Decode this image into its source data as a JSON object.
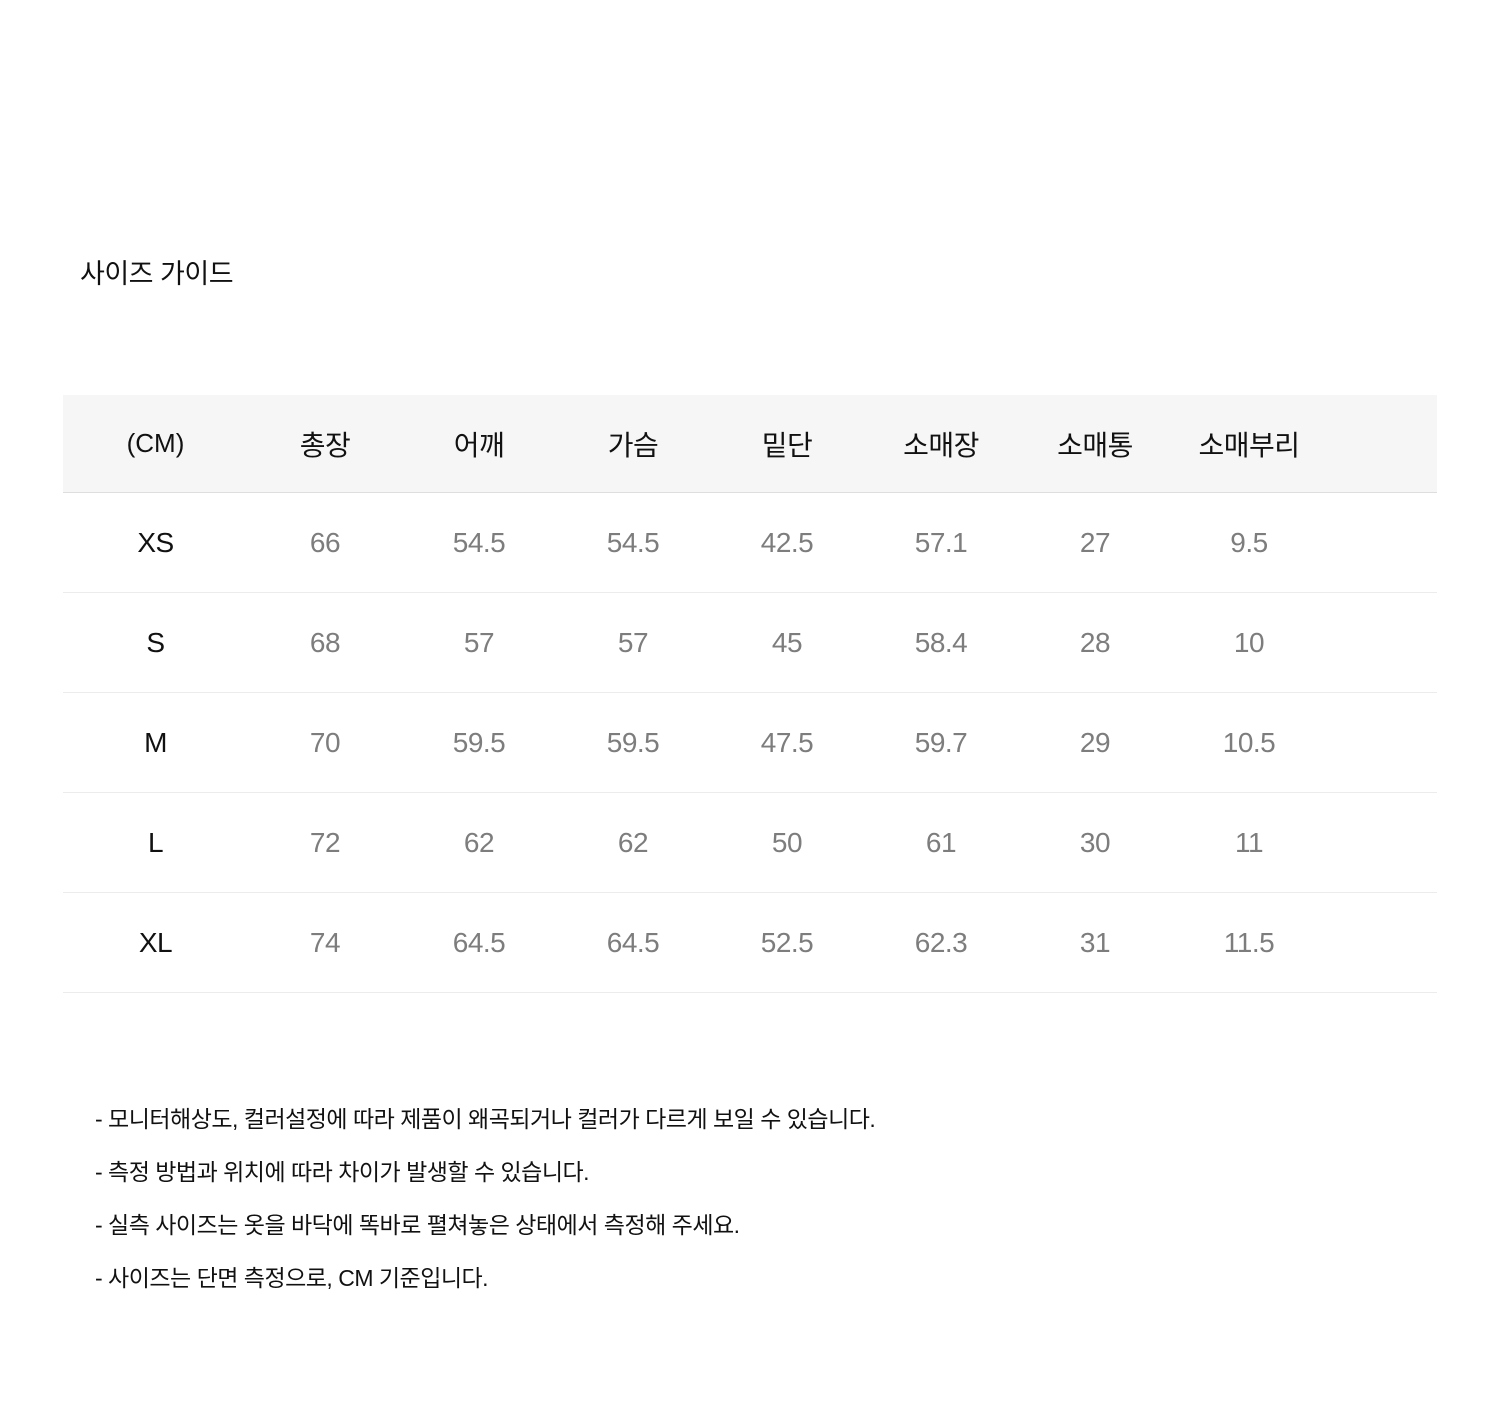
{
  "page": {
    "title": "사이즈 가이드"
  },
  "size_table": {
    "unit_label": "(CM)",
    "columns": [
      "총장",
      "어깨",
      "가슴",
      "밑단",
      "소매장",
      "소매통",
      "소매부리"
    ],
    "rows": [
      {
        "size": "XS",
        "values": [
          "66",
          "54.5",
          "54.5",
          "42.5",
          "57.1",
          "27",
          "9.5"
        ]
      },
      {
        "size": "S",
        "values": [
          "68",
          "57",
          "57",
          "45",
          "58.4",
          "28",
          "10"
        ]
      },
      {
        "size": "M",
        "values": [
          "70",
          "59.5",
          "59.5",
          "47.5",
          "59.7",
          "29",
          "10.5"
        ]
      },
      {
        "size": "L",
        "values": [
          "72",
          "62",
          "62",
          "50",
          "61",
          "30",
          "11"
        ]
      },
      {
        "size": "XL",
        "values": [
          "74",
          "64.5",
          "64.5",
          "52.5",
          "62.3",
          "31",
          "11.5"
        ]
      }
    ]
  },
  "notes": [
    "- 모니터해상도, 컬러설정에 따라 제품이 왜곡되거나 컬러가 다르게 보일 수 있습니다.",
    "- 측정 방법과 위치에 따라 차이가 발생할 수 있습니다.",
    "- 실측 사이즈는 옷을 바닥에 똑바로 펼쳐놓은 상태에서 측정해 주세요.",
    "- 사이즈는 단면 측정으로, CM 기준입니다."
  ],
  "colors": {
    "page_background": "#ffffff",
    "header_background": "#f6f6f6",
    "header_divider": "#dedede",
    "row_divider": "#ececec",
    "primary_text": "#111111",
    "value_text": "#7d7d7d"
  }
}
